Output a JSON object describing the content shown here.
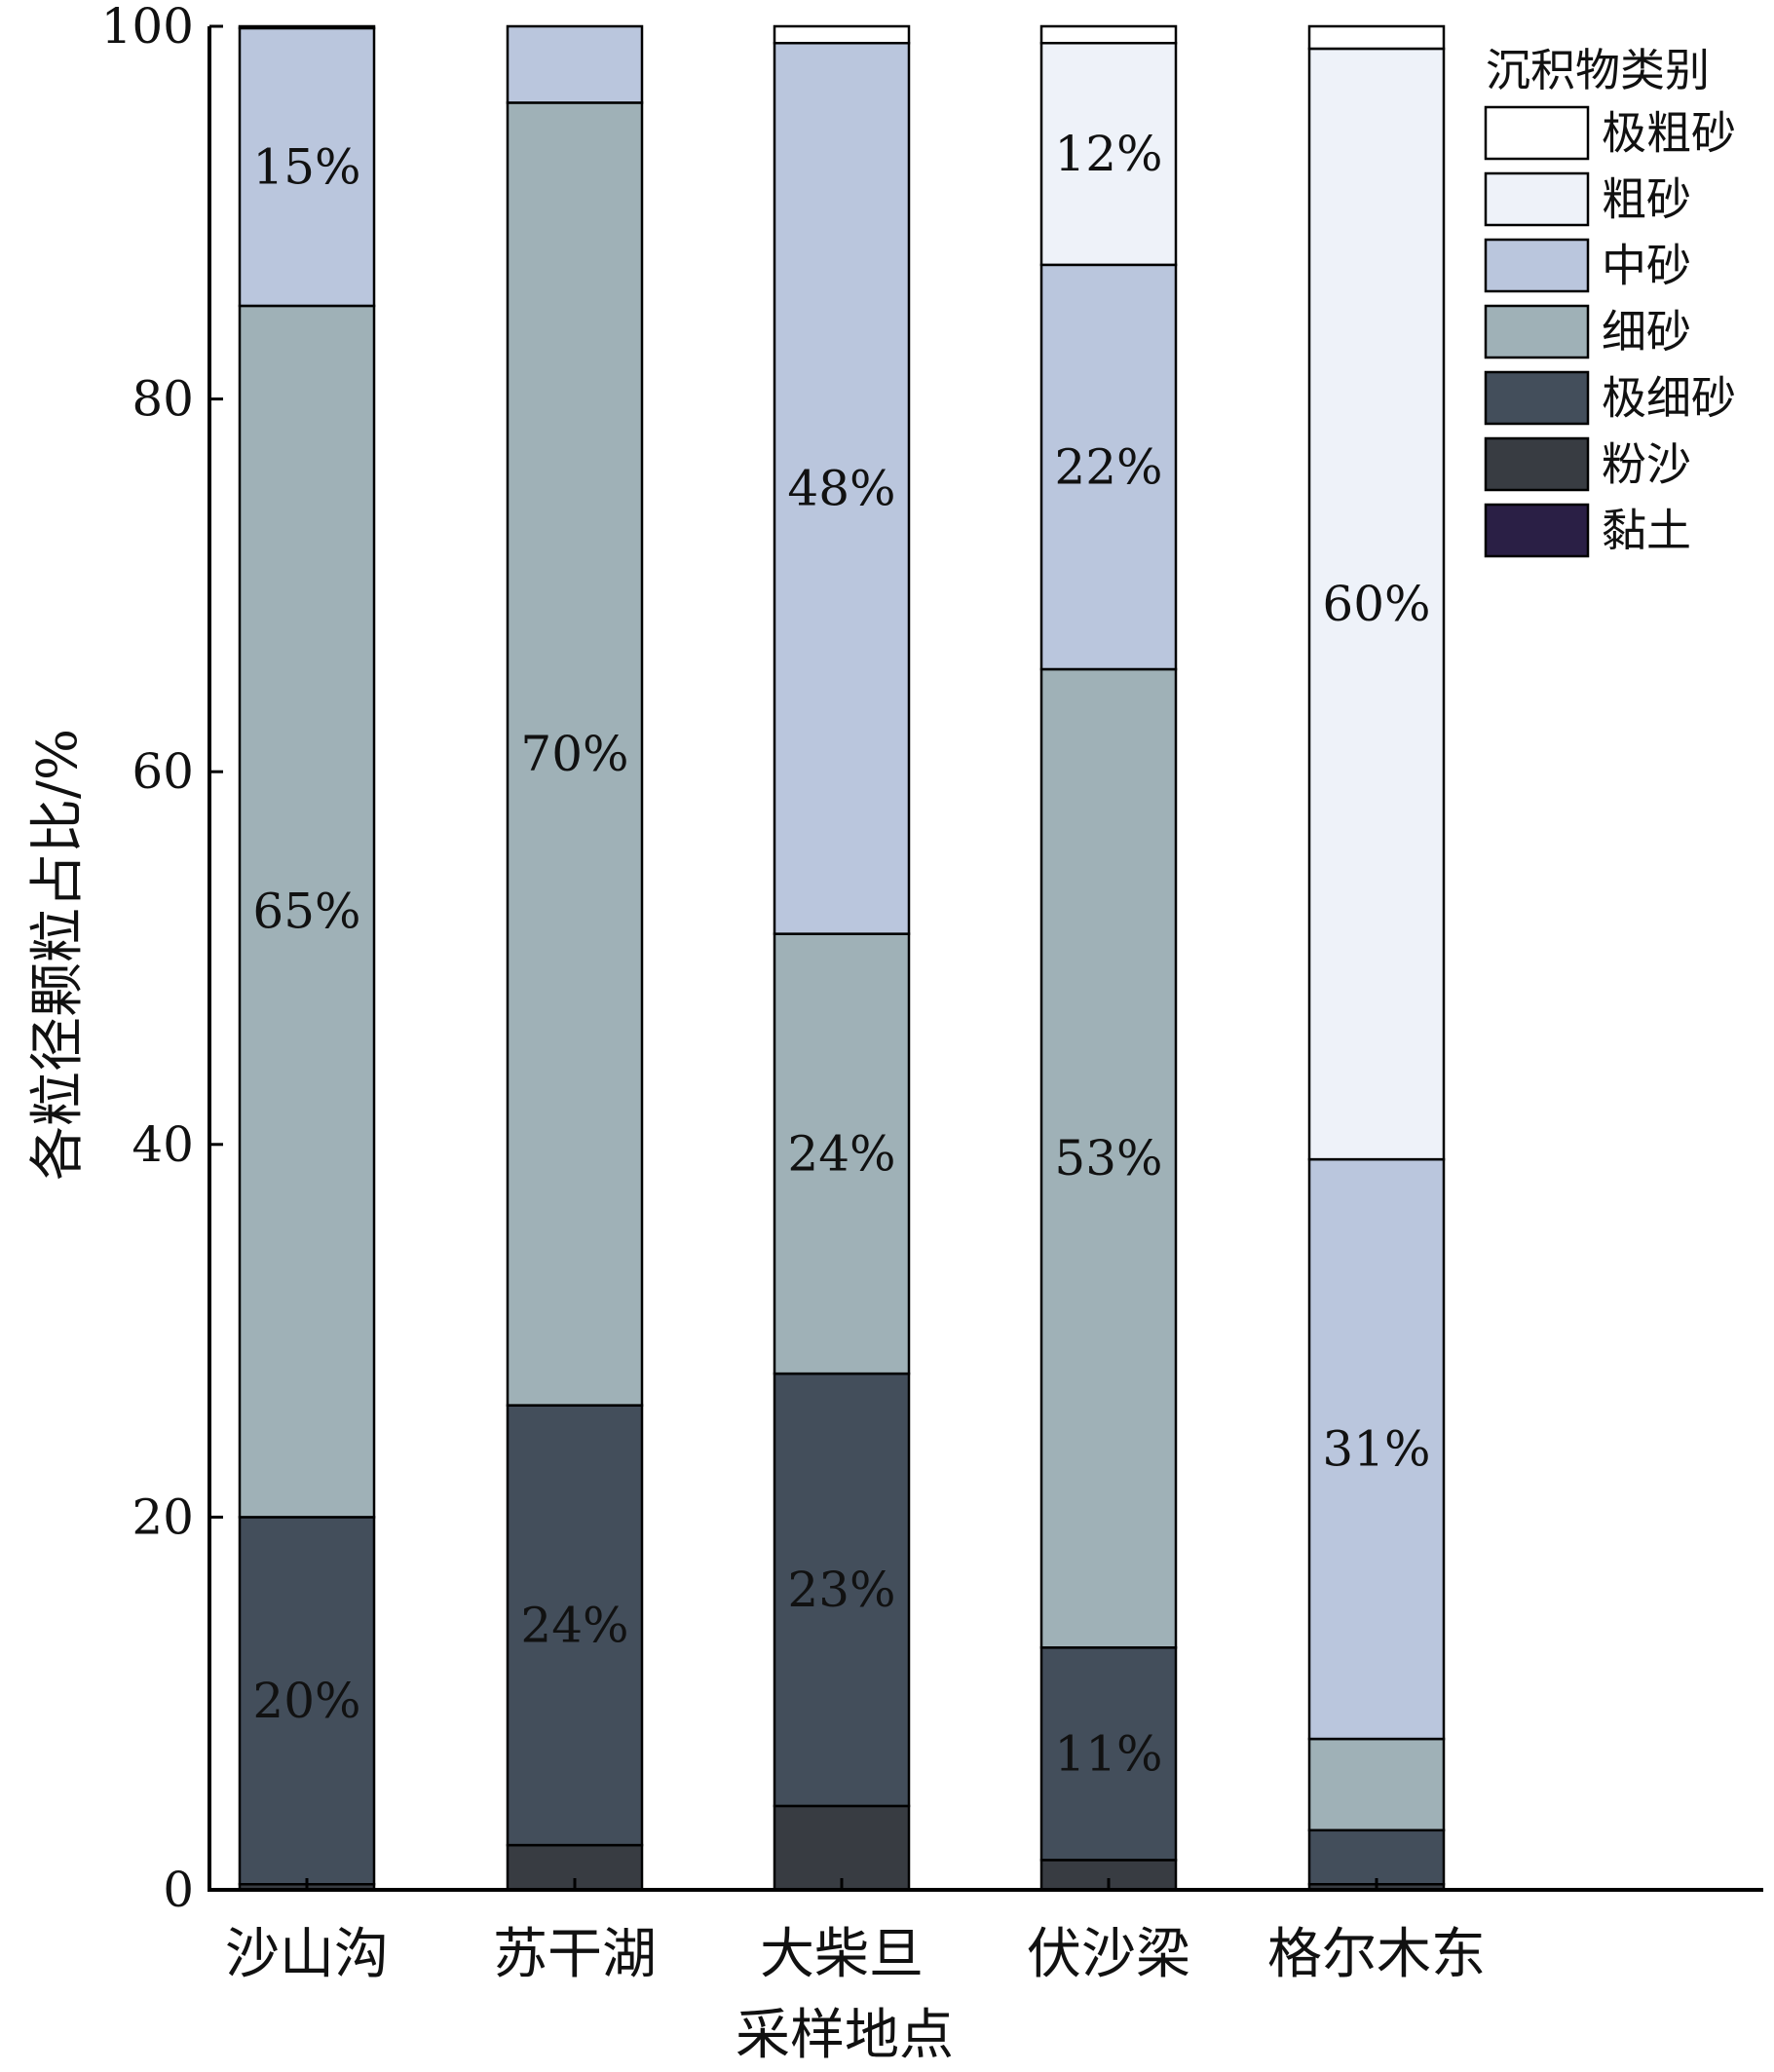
{
  "chart_data": {
    "type": "bar",
    "stacked": true,
    "ylabel": "各粒径颗粒占比/%",
    "xlabel": "采样地点",
    "ylim": [
      0,
      100
    ],
    "yticks": [
      0,
      20,
      40,
      60,
      80,
      100
    ],
    "categories": [
      "沙山沟",
      "苏干湖",
      "大柴旦",
      "伏沙梁",
      "格尔木东"
    ],
    "legend_title": "沉积物类别",
    "legend_position": "top-right",
    "series": [
      {
        "name": "黏土",
        "color": "#2a1f45",
        "values": [
          0.0,
          0.0,
          0.0,
          0.0,
          0.0
        ]
      },
      {
        "name": "粉沙",
        "color": "#383c42",
        "values": [
          0.3,
          2.4,
          4.5,
          1.6,
          0.3
        ]
      },
      {
        "name": "极细砂",
        "color": "#434e5b",
        "values": [
          19.7,
          23.6,
          23.2,
          11.4,
          2.9
        ]
      },
      {
        "name": "细砂",
        "color": "#9fb1b7",
        "values": [
          65.0,
          69.9,
          23.6,
          52.5,
          4.9
        ]
      },
      {
        "name": "中砂",
        "color": "#bac6dd",
        "values": [
          14.9,
          4.1,
          47.8,
          21.7,
          31.1
        ]
      },
      {
        "name": "粗砂",
        "color": "#eef2f9",
        "values": [
          0.0,
          0.0,
          0.0,
          11.9,
          59.6
        ]
      },
      {
        "name": "极粗砂",
        "color": "#ffffff",
        "values": [
          0.1,
          0.0,
          0.9,
          0.9,
          1.2
        ]
      }
    ],
    "data_labels": [
      [
        null,
        null,
        "20%",
        "65%",
        "15%",
        null,
        null
      ],
      [
        null,
        null,
        "24%",
        "70%",
        null,
        null,
        null
      ],
      [
        null,
        null,
        "23%",
        "24%",
        "48%",
        null,
        null
      ],
      [
        null,
        null,
        "11%",
        "53%",
        "22%",
        "12%",
        null
      ],
      [
        null,
        null,
        null,
        null,
        "31%",
        "60%",
        null
      ]
    ]
  }
}
